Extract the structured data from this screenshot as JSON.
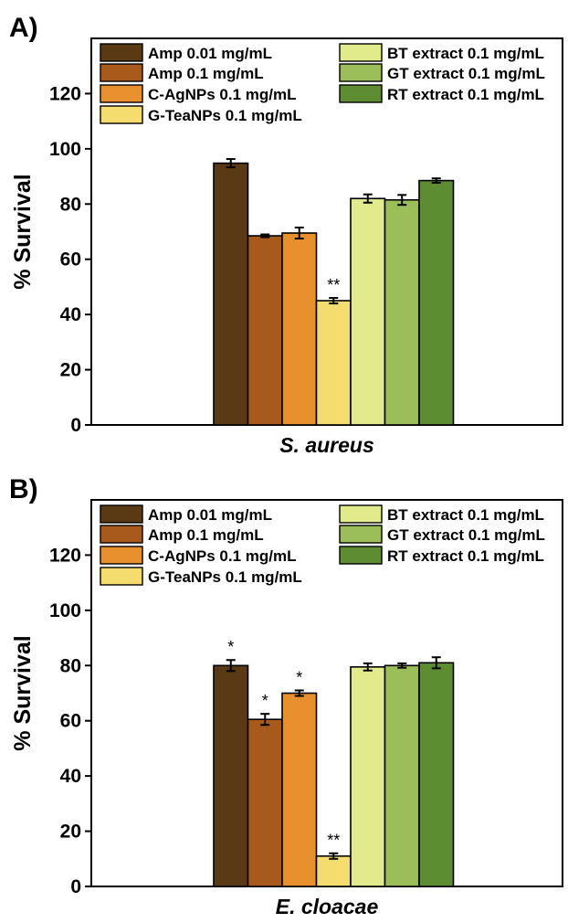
{
  "chart_data": [
    {
      "type": "bar",
      "panel_label": "A)",
      "xlabel": "S. aureus",
      "ylabel": "% Survival",
      "ylim": [
        0,
        140
      ],
      "yticks": [
        0,
        20,
        40,
        60,
        80,
        100,
        120
      ],
      "legend": {
        "placement": "top"
      },
      "series": [
        {
          "name": "Amp 0.01 mg/mL",
          "value": 94.8,
          "error": 1.5,
          "color": "#5a3a14",
          "annotation": ""
        },
        {
          "name": "Amp 0.1 mg/mL",
          "value": 68.5,
          "error": 0.5,
          "color": "#a85a1c",
          "annotation": ""
        },
        {
          "name": "C-AgNPs 0.1 mg/mL",
          "value": 69.5,
          "error": 2.0,
          "color": "#e8902e",
          "annotation": ""
        },
        {
          "name": "G-TeaNPs 0.1 mg/mL",
          "value": 45.0,
          "error": 1.0,
          "color": "#f5dc6e",
          "annotation": "**"
        },
        {
          "name": "BT extract 0.1 mg/mL",
          "value": 82.0,
          "error": 1.5,
          "color": "#e2eb8c",
          "annotation": ""
        },
        {
          "name": "GT extract 0.1 mg/mL",
          "value": 81.5,
          "error": 1.8,
          "color": "#9cbe5a",
          "annotation": ""
        },
        {
          "name": "RT extract 0.1 mg/mL",
          "value": 88.5,
          "error": 0.8,
          "color": "#5e8c32",
          "annotation": ""
        }
      ]
    },
    {
      "type": "bar",
      "panel_label": "B)",
      "xlabel": "E. cloacae",
      "ylabel": "% Survival",
      "ylim": [
        0,
        140
      ],
      "yticks": [
        0,
        20,
        40,
        60,
        80,
        100,
        120
      ],
      "legend": {
        "placement": "top"
      },
      "series": [
        {
          "name": "Amp 0.01 mg/mL",
          "value": 80.0,
          "error": 2.0,
          "color": "#5a3a14",
          "annotation": "*"
        },
        {
          "name": "Amp 0.1 mg/mL",
          "value": 60.5,
          "error": 2.0,
          "color": "#a85a1c",
          "annotation": "*"
        },
        {
          "name": "C-AgNPs 0.1 mg/mL",
          "value": 70.0,
          "error": 1.0,
          "color": "#e8902e",
          "annotation": "*"
        },
        {
          "name": "G-TeaNPs 0.1 mg/mL",
          "value": 11.0,
          "error": 1.0,
          "color": "#f5dc6e",
          "annotation": "**"
        },
        {
          "name": "BT extract 0.1 mg/mL",
          "value": 79.5,
          "error": 1.3,
          "color": "#e2eb8c",
          "annotation": ""
        },
        {
          "name": "GT extract 0.1 mg/mL",
          "value": 80.0,
          "error": 0.8,
          "color": "#9cbe5a",
          "annotation": ""
        },
        {
          "name": "RT extract 0.1 mg/mL",
          "value": 81.0,
          "error": 2.0,
          "color": "#5e8c32",
          "annotation": ""
        }
      ]
    }
  ]
}
